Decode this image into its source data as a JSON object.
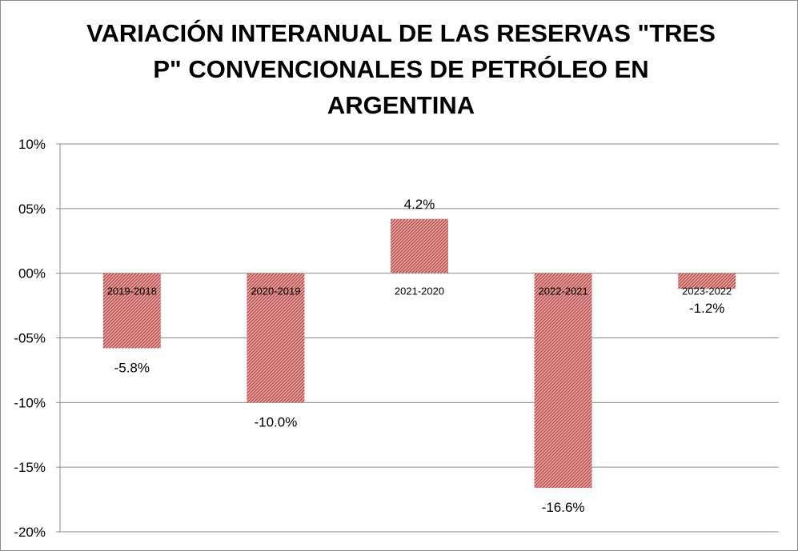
{
  "chart_data": {
    "type": "bar",
    "title_lines": [
      "VARIACIÓN INTERANUAL DE LAS RESERVAS \"TRES",
      "P\" CONVENCIONALES DE PETRÓLEO EN",
      "ARGENTINA"
    ],
    "categories": [
      "2019-2018",
      "2020-2019",
      "2021-2020",
      "2022-2021",
      "2023-2022"
    ],
    "values": [
      -5.8,
      -10.0,
      4.2,
      -16.6,
      -1.2
    ],
    "data_labels": [
      "-5.8%",
      "-10.0%",
      "4.2%",
      "-16.6%",
      "-1.2%"
    ],
    "ylim": [
      -20,
      10
    ],
    "yticks": [
      10,
      5,
      0,
      -5,
      -10,
      -15,
      -20
    ],
    "ytick_labels": [
      "10%",
      "05%",
      "00%",
      "-05%",
      "-10%",
      "-15%",
      "-20%"
    ],
    "grid": true,
    "legend": "none",
    "bar_color": "#c0504d",
    "gridline_color": "#8c8c8c"
  }
}
